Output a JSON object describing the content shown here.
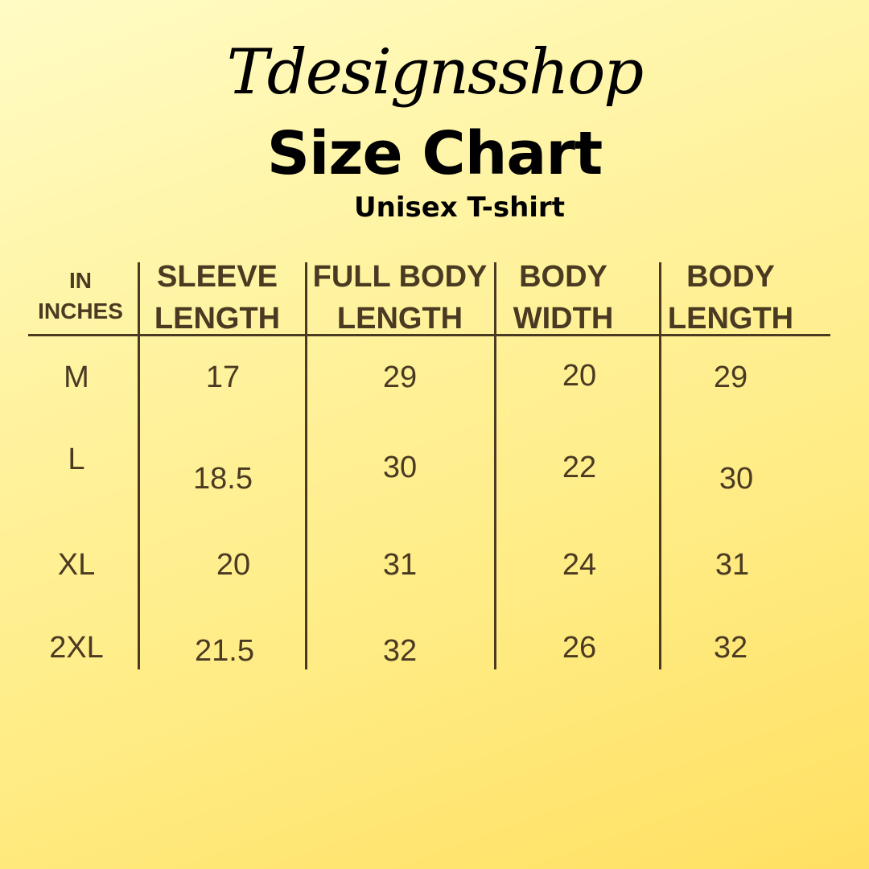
{
  "brand": "Tdesignsshop",
  "title": "Size Chart",
  "subtitle": "Unisex T-shirt",
  "colors": {
    "text": "#4a3a22",
    "title": "#000000",
    "background_start": "#fffbc4",
    "background_end": "#ffe062"
  },
  "table": {
    "headers": [
      [
        "IN",
        "INCHES"
      ],
      [
        "SLEEVE",
        "LENGTH"
      ],
      [
        "FULL BODY",
        "LENGTH"
      ],
      [
        "BODY",
        "WIDTH"
      ],
      [
        "BODY",
        "LENGTH"
      ]
    ],
    "rows": [
      [
        "M",
        "17",
        "29",
        "20",
        "29"
      ],
      [
        "L",
        "18.5",
        "30",
        "22",
        "30"
      ],
      [
        "XL",
        "20",
        "31",
        "24",
        "31"
      ],
      [
        "2XL",
        "21.5",
        "32",
        "26",
        "32"
      ]
    ]
  }
}
